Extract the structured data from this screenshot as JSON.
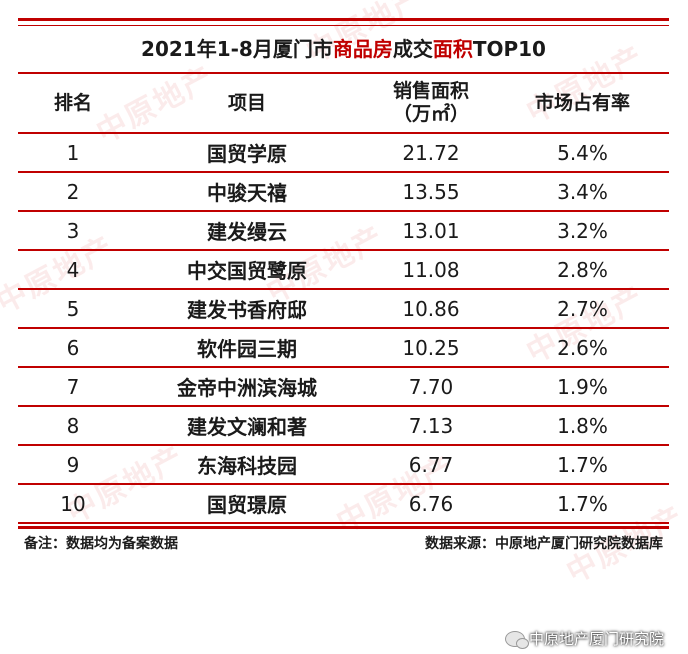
{
  "title": {
    "prefix": "2021年1-8月厦门市",
    "highlight1": "商品房",
    "middle": "成交",
    "highlight2": "面积",
    "suffix": "TOP10"
  },
  "table": {
    "headers": {
      "rank": "排名",
      "project": "项目",
      "area_line1": "销售面积",
      "area_line2": "（万㎡）",
      "share": "市场占有率"
    },
    "rows": [
      {
        "rank": "1",
        "project": "国贸学原",
        "area": "21.72",
        "share": "5.4%"
      },
      {
        "rank": "2",
        "project": "中骏天禧",
        "area": "13.55",
        "share": "3.4%"
      },
      {
        "rank": "3",
        "project": "建发缦云",
        "area": "13.01",
        "share": "3.2%"
      },
      {
        "rank": "4",
        "project": "中交国贸鹭原",
        "area": "11.08",
        "share": "2.8%"
      },
      {
        "rank": "5",
        "project": "建发书香府邸",
        "area": "10.86",
        "share": "2.7%"
      },
      {
        "rank": "6",
        "project": "软件园三期",
        "area": "10.25",
        "share": "2.6%"
      },
      {
        "rank": "7",
        "project": "金帝中洲滨海城",
        "area": "7.70",
        "share": "1.9%"
      },
      {
        "rank": "8",
        "project": "建发文澜和著",
        "area": "7.13",
        "share": "1.8%"
      },
      {
        "rank": "9",
        "project": "东海科技园",
        "area": "6.77",
        "share": "1.7%"
      },
      {
        "rank": "10",
        "project": "国贸璟原",
        "area": "6.76",
        "share": "1.7%"
      }
    ]
  },
  "footer": {
    "note": "备注：数据均为备案数据",
    "source": "数据来源：中原地产厦门研究院数据库"
  },
  "wechat": {
    "label": "中原地产厦门研究院",
    "icon": "wechat-icon"
  },
  "watermark": {
    "text": "中原地产"
  },
  "colors": {
    "accent": "#c00000",
    "text": "#1a1a1a"
  }
}
